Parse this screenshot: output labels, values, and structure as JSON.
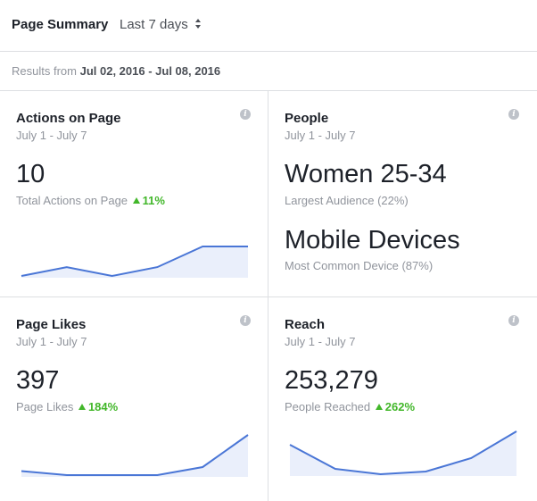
{
  "header": {
    "title": "Page Summary",
    "period_label": "Last 7 days"
  },
  "results": {
    "prefix": "Results from",
    "range": "Jul 02, 2016 - Jul 08, 2016"
  },
  "cards": {
    "actions": {
      "title": "Actions on Page",
      "date_range": "July 1 - July 7",
      "value": "10",
      "metric_label": "Total Actions on Page",
      "change": "11%",
      "trend": [
        0.0,
        0.3,
        0.0,
        0.3,
        1.0,
        1.0
      ]
    },
    "people": {
      "title": "People",
      "date_range": "July 1 - July 7",
      "audience_value": "Women 25-34",
      "audience_label": "Largest Audience (22%)",
      "device_value": "Mobile Devices",
      "device_label": "Most Common Device (87%)"
    },
    "likes": {
      "title": "Page Likes",
      "date_range": "July 1 - July 7",
      "value": "397",
      "metric_label": "Page Likes",
      "change": "184%",
      "trend": [
        0.1,
        0.0,
        0.0,
        0.0,
        0.2,
        1.0
      ]
    },
    "reach": {
      "title": "Reach",
      "date_range": "July 1 - July 7",
      "value": "253,279",
      "metric_label": "People Reached",
      "change": "262%",
      "trend": [
        0.55,
        0.1,
        0.0,
        0.05,
        0.3,
        0.8
      ]
    }
  },
  "colors": {
    "line": "#4a76d6",
    "fill": "#eaeffb",
    "positive": "#42b72a"
  }
}
